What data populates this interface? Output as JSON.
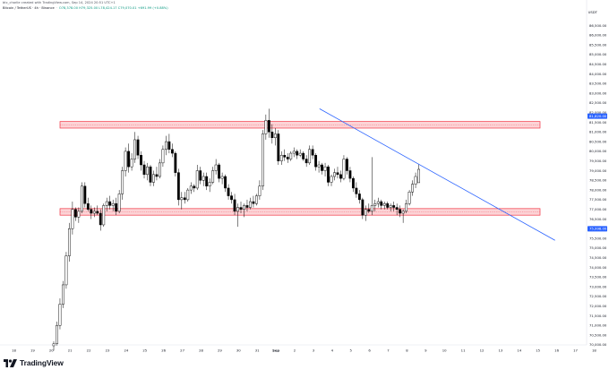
{
  "credit": "btc_charlie created with TradingView.com, Sep 14, 2024 20:51 UTC+1",
  "legend": {
    "symbol": "Bitcoin / TetherUS · 4h · Binance",
    "ohlc": "O78,378.00 H79,325.00 L78,424.17 C79,070.01 +691.99 (+0.88%)"
  },
  "currency": "USDT",
  "brand": "TradingView",
  "colors": {
    "up": "#ffffff",
    "down": "#000000",
    "zone": "#f23645",
    "trendline": "#2962ff",
    "price_tag": "#2962ff"
  },
  "chart_data": {
    "type": "candlestick",
    "title": "Bitcoin / TetherUS · 4h · Binance",
    "ylabel": "USDT",
    "ylim": [
      69500,
      87500
    ],
    "x_ticks": [
      "18",
      "19",
      "20",
      "21",
      "22",
      "23",
      "24",
      "25",
      "26",
      "27",
      "28",
      "29",
      "30",
      "31",
      "Sep",
      "2",
      "3",
      "4",
      "5",
      "6",
      "7",
      "8",
      "9",
      "10",
      "11",
      "12",
      "13",
      "14",
      "15",
      "16",
      "17",
      "18"
    ],
    "y_ticks": [
      "86,500.00",
      "86,000.00",
      "85,500.00",
      "85,000.00",
      "84,500.00",
      "84,000.00",
      "83,500.00",
      "83,000.00",
      "82,500.00",
      "82,000.00",
      "81,500.00",
      "81,000.00",
      "80,500.00",
      "80,000.00",
      "79,500.00",
      "79,000.00",
      "78,500.00",
      "78,000.00",
      "77,500.00",
      "77,000.00",
      "76,500.00",
      "76,000.00",
      "75,500.00",
      "75,000.00",
      "74,500.00",
      "74,000.00",
      "73,500.00",
      "73,000.00",
      "72,500.00",
      "72,000.00",
      "71,500.00",
      "71,000.00",
      "70,500.00",
      "70,000.00"
    ],
    "price_tags": [
      {
        "value": 81820,
        "label": "81,820.00"
      },
      {
        "value": 75998,
        "label": "75,998.00"
      }
    ],
    "zones": [
      {
        "from": 81200,
        "to": 81540
      },
      {
        "from": 76700,
        "to": 77040
      }
    ],
    "trendline": [
      {
        "date": "Sep 4",
        "value": 82200
      },
      {
        "date": "Sep 15",
        "value": 75400
      }
    ],
    "candles": [
      {
        "o": 69950,
        "h": 70180,
        "l": 69700,
        "c": 70050
      },
      {
        "o": 70050,
        "h": 71200,
        "l": 69950,
        "c": 71000
      },
      {
        "o": 71000,
        "h": 72400,
        "l": 70800,
        "c": 72100
      },
      {
        "o": 72100,
        "h": 73300,
        "l": 71900,
        "c": 73100
      },
      {
        "o": 73100,
        "h": 74800,
        "l": 72900,
        "c": 74600
      },
      {
        "o": 74600,
        "h": 76300,
        "l": 74300,
        "c": 76000
      },
      {
        "o": 76000,
        "h": 77400,
        "l": 75700,
        "c": 77000
      },
      {
        "o": 77000,
        "h": 77100,
        "l": 76400,
        "c": 76600
      },
      {
        "o": 76600,
        "h": 77100,
        "l": 76300,
        "c": 76900
      },
      {
        "o": 76900,
        "h": 78400,
        "l": 76800,
        "c": 78200
      },
      {
        "o": 78200,
        "h": 78400,
        "l": 77100,
        "c": 77300
      },
      {
        "o": 77300,
        "h": 77600,
        "l": 76900,
        "c": 77000
      },
      {
        "o": 77000,
        "h": 77200,
        "l": 76500,
        "c": 76800
      },
      {
        "o": 76800,
        "h": 77100,
        "l": 76600,
        "c": 76900
      },
      {
        "o": 76900,
        "h": 77200,
        "l": 76700,
        "c": 76800
      },
      {
        "o": 76800,
        "h": 77000,
        "l": 75900,
        "c": 76200
      },
      {
        "o": 76200,
        "h": 77300,
        "l": 76100,
        "c": 77200
      },
      {
        "o": 77200,
        "h": 77600,
        "l": 76900,
        "c": 77400
      },
      {
        "o": 77400,
        "h": 77700,
        "l": 77000,
        "c": 77200
      },
      {
        "o": 77200,
        "h": 77500,
        "l": 76900,
        "c": 77300
      },
      {
        "o": 77300,
        "h": 77600,
        "l": 76700,
        "c": 76900
      },
      {
        "o": 76900,
        "h": 78000,
        "l": 76800,
        "c": 77800
      },
      {
        "o": 77800,
        "h": 79200,
        "l": 77500,
        "c": 79000
      },
      {
        "o": 79000,
        "h": 80200,
        "l": 78700,
        "c": 80000
      },
      {
        "o": 80000,
        "h": 80400,
        "l": 78900,
        "c": 79200
      },
      {
        "o": 79200,
        "h": 79900,
        "l": 79000,
        "c": 79600
      },
      {
        "o": 79600,
        "h": 81000,
        "l": 79400,
        "c": 80600
      },
      {
        "o": 80600,
        "h": 80800,
        "l": 79600,
        "c": 79800
      },
      {
        "o": 79800,
        "h": 80000,
        "l": 79000,
        "c": 79300
      },
      {
        "o": 79300,
        "h": 79500,
        "l": 78600,
        "c": 78800
      },
      {
        "o": 78800,
        "h": 79400,
        "l": 78500,
        "c": 79200
      },
      {
        "o": 79200,
        "h": 79300,
        "l": 78200,
        "c": 78400
      },
      {
        "o": 78400,
        "h": 79000,
        "l": 78200,
        "c": 78800
      },
      {
        "o": 78800,
        "h": 79200,
        "l": 78500,
        "c": 78700
      },
      {
        "o": 78700,
        "h": 79600,
        "l": 78600,
        "c": 79400
      },
      {
        "o": 79400,
        "h": 80300,
        "l": 79200,
        "c": 80100
      },
      {
        "o": 80100,
        "h": 80800,
        "l": 79800,
        "c": 80500
      },
      {
        "o": 80500,
        "h": 80900,
        "l": 79900,
        "c": 80100
      },
      {
        "o": 80100,
        "h": 80400,
        "l": 79700,
        "c": 79900
      },
      {
        "o": 79900,
        "h": 80000,
        "l": 78700,
        "c": 78900
      },
      {
        "o": 78900,
        "h": 79100,
        "l": 77200,
        "c": 77500
      },
      {
        "o": 77500,
        "h": 77900,
        "l": 77000,
        "c": 77600
      },
      {
        "o": 77600,
        "h": 77900,
        "l": 77300,
        "c": 77500
      },
      {
        "o": 77500,
        "h": 78100,
        "l": 77400,
        "c": 78000
      },
      {
        "o": 78000,
        "h": 78400,
        "l": 77800,
        "c": 78200
      },
      {
        "o": 78200,
        "h": 78300,
        "l": 77900,
        "c": 78100
      },
      {
        "o": 78100,
        "h": 79300,
        "l": 78000,
        "c": 79000
      },
      {
        "o": 79000,
        "h": 79200,
        "l": 78300,
        "c": 78500
      },
      {
        "o": 78500,
        "h": 78900,
        "l": 78200,
        "c": 78700
      },
      {
        "o": 78700,
        "h": 78900,
        "l": 78000,
        "c": 78200
      },
      {
        "o": 78200,
        "h": 78600,
        "l": 77900,
        "c": 78400
      },
      {
        "o": 78400,
        "h": 79200,
        "l": 78300,
        "c": 79000
      },
      {
        "o": 79000,
        "h": 79600,
        "l": 78800,
        "c": 79300
      },
      {
        "o": 79300,
        "h": 79400,
        "l": 78400,
        "c": 78600
      },
      {
        "o": 78600,
        "h": 78900,
        "l": 78300,
        "c": 78700
      },
      {
        "o": 78700,
        "h": 78800,
        "l": 77900,
        "c": 78100
      },
      {
        "o": 78100,
        "h": 78300,
        "l": 77500,
        "c": 77700
      },
      {
        "o": 77700,
        "h": 77900,
        "l": 77300,
        "c": 77500
      },
      {
        "o": 77500,
        "h": 77800,
        "l": 76700,
        "c": 76900
      },
      {
        "o": 76900,
        "h": 77300,
        "l": 76100,
        "c": 77100
      },
      {
        "o": 77100,
        "h": 77400,
        "l": 76800,
        "c": 77000
      },
      {
        "o": 77000,
        "h": 77300,
        "l": 76600,
        "c": 77200
      },
      {
        "o": 77200,
        "h": 77500,
        "l": 76900,
        "c": 77100
      },
      {
        "o": 77100,
        "h": 77600,
        "l": 77000,
        "c": 77400
      },
      {
        "o": 77400,
        "h": 77700,
        "l": 77100,
        "c": 77300
      },
      {
        "o": 77300,
        "h": 77800,
        "l": 77200,
        "c": 77700
      },
      {
        "o": 77700,
        "h": 78500,
        "l": 77500,
        "c": 78200
      },
      {
        "o": 78200,
        "h": 81100,
        "l": 78000,
        "c": 80900
      },
      {
        "o": 80900,
        "h": 81900,
        "l": 80600,
        "c": 81600
      },
      {
        "o": 81600,
        "h": 82200,
        "l": 80700,
        "c": 81000
      },
      {
        "o": 81000,
        "h": 81400,
        "l": 80400,
        "c": 80700
      },
      {
        "o": 80700,
        "h": 81200,
        "l": 80300,
        "c": 80900
      },
      {
        "o": 80900,
        "h": 81100,
        "l": 79300,
        "c": 79500
      },
      {
        "o": 79500,
        "h": 80000,
        "l": 79300,
        "c": 79800
      },
      {
        "o": 79800,
        "h": 80100,
        "l": 79500,
        "c": 79700
      },
      {
        "o": 79700,
        "h": 79900,
        "l": 79400,
        "c": 79600
      },
      {
        "o": 79600,
        "h": 80000,
        "l": 79500,
        "c": 79900
      },
      {
        "o": 79900,
        "h": 80200,
        "l": 79700,
        "c": 80000
      },
      {
        "o": 80000,
        "h": 80100,
        "l": 79600,
        "c": 79800
      },
      {
        "o": 79800,
        "h": 80100,
        "l": 79700,
        "c": 79900
      },
      {
        "o": 79900,
        "h": 80000,
        "l": 79500,
        "c": 79600
      },
      {
        "o": 79600,
        "h": 79800,
        "l": 79200,
        "c": 79400
      },
      {
        "o": 79400,
        "h": 80300,
        "l": 79300,
        "c": 80100
      },
      {
        "o": 80100,
        "h": 80300,
        "l": 79600,
        "c": 79800
      },
      {
        "o": 79800,
        "h": 79900,
        "l": 79000,
        "c": 79200
      },
      {
        "o": 79200,
        "h": 79500,
        "l": 78900,
        "c": 79300
      },
      {
        "o": 79300,
        "h": 79400,
        "l": 78800,
        "c": 79000
      },
      {
        "o": 79000,
        "h": 79400,
        "l": 78700,
        "c": 79200
      },
      {
        "o": 79200,
        "h": 79300,
        "l": 78200,
        "c": 78400
      },
      {
        "o": 78400,
        "h": 78800,
        "l": 78200,
        "c": 78700
      },
      {
        "o": 78700,
        "h": 79100,
        "l": 78500,
        "c": 78900
      },
      {
        "o": 78900,
        "h": 79200,
        "l": 78600,
        "c": 78800
      },
      {
        "o": 78800,
        "h": 79000,
        "l": 78400,
        "c": 78600
      },
      {
        "o": 78600,
        "h": 79800,
        "l": 78500,
        "c": 79600
      },
      {
        "o": 79600,
        "h": 79700,
        "l": 78800,
        "c": 79000
      },
      {
        "o": 79000,
        "h": 79200,
        "l": 78400,
        "c": 78600
      },
      {
        "o": 78600,
        "h": 78700,
        "l": 77900,
        "c": 78100
      },
      {
        "o": 78100,
        "h": 78400,
        "l": 77600,
        "c": 77800
      },
      {
        "o": 77800,
        "h": 78000,
        "l": 77300,
        "c": 77500
      },
      {
        "o": 77500,
        "h": 77600,
        "l": 76500,
        "c": 76700
      },
      {
        "o": 76700,
        "h": 77200,
        "l": 76400,
        "c": 77000
      },
      {
        "o": 77000,
        "h": 77300,
        "l": 76800,
        "c": 76900
      },
      {
        "o": 76900,
        "h": 79700,
        "l": 76700,
        "c": 77200
      },
      {
        "o": 77200,
        "h": 77500,
        "l": 76900,
        "c": 77300
      },
      {
        "o": 77300,
        "h": 77600,
        "l": 77100,
        "c": 77400
      },
      {
        "o": 77400,
        "h": 77500,
        "l": 77000,
        "c": 77200
      },
      {
        "o": 77200,
        "h": 77400,
        "l": 77000,
        "c": 77300
      },
      {
        "o": 77300,
        "h": 77400,
        "l": 77000,
        "c": 77100
      },
      {
        "o": 77100,
        "h": 77300,
        "l": 76900,
        "c": 77200
      },
      {
        "o": 77200,
        "h": 77400,
        "l": 76900,
        "c": 77100
      },
      {
        "o": 77100,
        "h": 77300,
        "l": 76700,
        "c": 77000
      },
      {
        "o": 77000,
        "h": 77200,
        "l": 76600,
        "c": 76800
      },
      {
        "o": 76800,
        "h": 77000,
        "l": 76300,
        "c": 76900
      },
      {
        "o": 76900,
        "h": 77500,
        "l": 76800,
        "c": 77300
      },
      {
        "o": 77300,
        "h": 78000,
        "l": 77200,
        "c": 77900
      },
      {
        "o": 77900,
        "h": 78500,
        "l": 77700,
        "c": 78300
      },
      {
        "o": 78300,
        "h": 78900,
        "l": 78100,
        "c": 78700
      },
      {
        "o": 78378,
        "h": 79325,
        "l": 78424,
        "c": 79070
      }
    ]
  }
}
